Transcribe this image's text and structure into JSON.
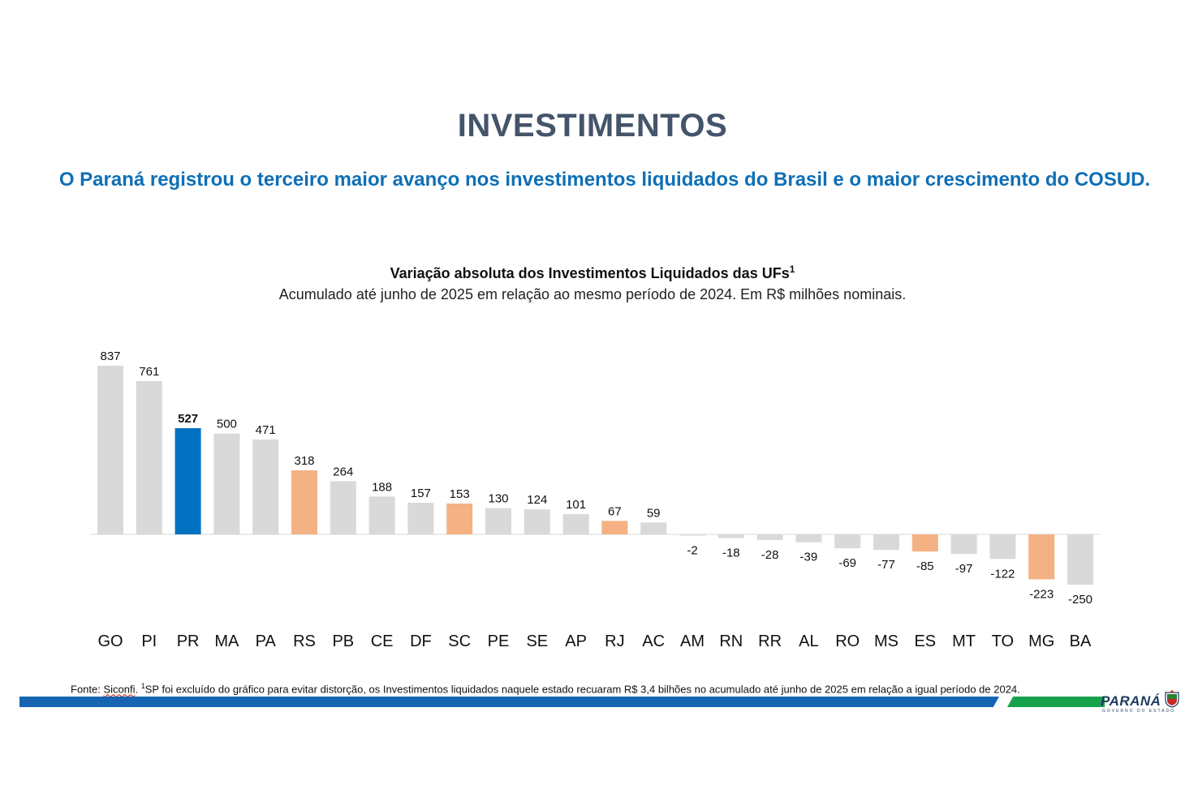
{
  "header": {
    "title": "INVESTIMENTOS",
    "subtitle": "O Paraná registrou o terceiro maior avanço nos investimentos liquidados do Brasil e o maior crescimento do COSUD."
  },
  "colors": {
    "default_bar": "#d9d9d9",
    "highlight_bar": "#0070c0",
    "cosud_bar": "#f4b183",
    "title": "#44546a",
    "subtitle": "#0f6fb5"
  },
  "chart_data": {
    "type": "bar",
    "title": "Variação absoluta dos Investimentos Liquidados das UFs",
    "title_footnote_marker": "1",
    "subtitle": "Acumulado até junho de 2025 em relação ao mesmo período de 2024. Em R$ milhões nominais.",
    "categories": [
      "GO",
      "PI",
      "PR",
      "MA",
      "PA",
      "RS",
      "PB",
      "CE",
      "DF",
      "SC",
      "PE",
      "SE",
      "AP",
      "RJ",
      "AC",
      "AM",
      "RN",
      "RR",
      "AL",
      "RO",
      "MS",
      "ES",
      "MT",
      "TO",
      "MG",
      "BA"
    ],
    "values": [
      837,
      761,
      527,
      500,
      471,
      318,
      264,
      188,
      157,
      153,
      130,
      124,
      101,
      67,
      59,
      -2,
      -18,
      -28,
      -39,
      -69,
      -77,
      -85,
      -97,
      -122,
      -223,
      -250
    ],
    "bar_colors": [
      "default",
      "default",
      "highlight",
      "default",
      "default",
      "cosud",
      "default",
      "default",
      "default",
      "cosud",
      "default",
      "default",
      "default",
      "cosud",
      "default",
      "default",
      "default",
      "default",
      "default",
      "default",
      "default",
      "cosud",
      "default",
      "default",
      "cosud",
      "default"
    ],
    "bold_labels": [
      "PR"
    ],
    "xlabel": "",
    "ylabel": "",
    "ylim": [
      -250,
      837
    ],
    "grid": false,
    "legend": "none"
  },
  "footer": {
    "source_prefix": "Fonte: ",
    "source_name": "Siconfi",
    "source_dot": ". ",
    "note_marker": "1",
    "note": "SP foi excluído do gráfico para evitar distorção, os Investimentos liquidados naquele estado recuaram R$ 3,4 bilhões no acumulado até junho de 2025 em relação a igual período de 2024.",
    "logo_text": "PARANÁ",
    "logo_subtext": "GOVERNO DO ESTADO"
  }
}
